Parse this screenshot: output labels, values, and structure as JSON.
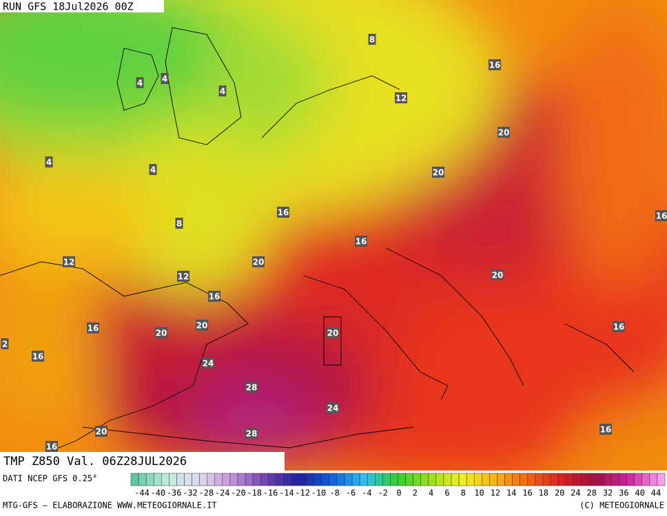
{
  "header": {
    "run": "RUN GFS 18Jul2026 00Z"
  },
  "map": {
    "title": "TMP Z850 Val. 06Z28JUL2026",
    "contour_labels": [
      8,
      16,
      4,
      4,
      4,
      12,
      20,
      4,
      4,
      20,
      16,
      16,
      8,
      16,
      20,
      12,
      12,
      20,
      16,
      16,
      16,
      20,
      20,
      20,
      2,
      16,
      24,
      28,
      24,
      20,
      28,
      16,
      16
    ]
  },
  "legend": {
    "source": "DATI NCEP GFS 0.25°",
    "ticks": [
      -44,
      -40,
      -36,
      -32,
      -28,
      -24,
      -20,
      -18,
      -16,
      -14,
      -12,
      -10,
      -8,
      -6,
      -4,
      -2,
      0,
      2,
      4,
      6,
      8,
      10,
      12,
      14,
      16,
      18,
      20,
      24,
      28,
      32,
      36,
      40,
      44
    ]
  },
  "footer": {
    "left": "MTG-GFS — ELABORAZIONE WWW.METEOGIORNALE.IT",
    "right": "(C) METEOGIORNALE"
  }
}
